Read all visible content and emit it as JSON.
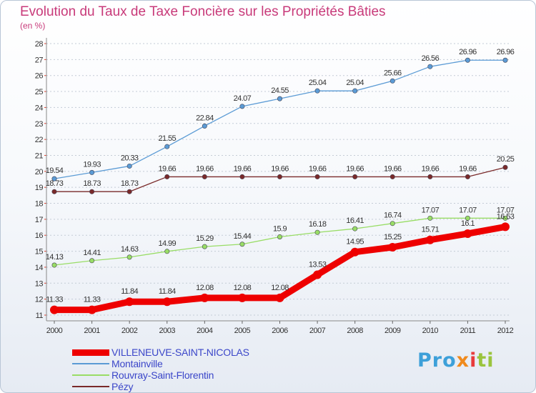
{
  "title": "Evolution du Taux de Taxe Foncière sur les Propriétés Bâties",
  "subtitle": "(en %)",
  "brand": {
    "text": "Proxiti",
    "letters": [
      "Pro",
      "x",
      "i",
      "ti"
    ],
    "colors": [
      "#3da0d9",
      "#f08a1c",
      "#e83b3b",
      "#9ac43d"
    ]
  },
  "chart_data": {
    "type": "line",
    "title": "Evolution du Taux de Taxe Foncière sur les Propriétés Bâties",
    "subtitle": "(en %)",
    "xlabel": "",
    "ylabel": "(en %)",
    "ylim": [
      11,
      28
    ],
    "yticks": [
      11,
      12,
      13,
      14,
      15,
      16,
      17,
      18,
      19,
      20,
      21,
      22,
      23,
      24,
      25,
      26,
      27,
      28
    ],
    "grid": "horizontal dotted",
    "legend_position": "bottom-left",
    "categories": [
      "2000",
      "2001",
      "2002",
      "2003",
      "2004",
      "2005",
      "2006",
      "2007",
      "2008",
      "2009",
      "2010",
      "2011",
      "2012"
    ],
    "series": [
      {
        "name": "VILLENEUVE-SAINT-NICOLAS",
        "color": "#ee0000",
        "thick": true,
        "values": [
          11.33,
          11.33,
          11.84,
          11.84,
          12.08,
          12.08,
          12.08,
          13.53,
          14.95,
          15.25,
          15.71,
          16.1,
          16.53
        ],
        "labels": [
          "11.33",
          "11.33",
          "11.84",
          "11.84",
          "12.08",
          "12.08",
          "12.08",
          "13.53",
          "14.95",
          "15.25",
          "15.71",
          "16.1",
          "16.53"
        ]
      },
      {
        "name": "Montainville",
        "color": "#5b9bd5",
        "thick": false,
        "values": [
          19.54,
          19.93,
          20.33,
          21.55,
          22.84,
          24.07,
          24.55,
          25.04,
          25.04,
          25.66,
          26.56,
          26.96,
          26.96
        ],
        "labels": [
          "19.54",
          "19.93",
          "20.33",
          "21.55",
          "22.84",
          "24.07",
          "24.55",
          "25.04",
          "25.04",
          "25.66",
          "26.56",
          "26.96",
          "26.96"
        ]
      },
      {
        "name": "Rouvray-Saint-Florentin",
        "color": "#99dd66",
        "thick": false,
        "values": [
          14.13,
          14.41,
          14.63,
          14.99,
          15.29,
          15.44,
          15.9,
          16.18,
          16.41,
          16.74,
          17.07,
          17.07,
          17.07
        ],
        "labels": [
          "14.13",
          "14.41",
          "14.63",
          "14.99",
          "15.29",
          "15.44",
          "15.9",
          "16.18",
          "16.41",
          "16.74",
          "17.07",
          "17.07",
          "17.07"
        ]
      },
      {
        "name": "Pézy",
        "color": "#7a2a2a",
        "thick": false,
        "values": [
          18.73,
          18.73,
          18.73,
          19.66,
          19.66,
          19.66,
          19.66,
          19.66,
          19.66,
          19.66,
          19.66,
          19.66,
          20.25
        ],
        "labels": [
          "18.73",
          "18.73",
          "18.73",
          "19.66",
          "19.66",
          "19.66",
          "19.66",
          "19.66",
          "19.66",
          "19.66",
          "19.66",
          "19.66",
          "20.25"
        ]
      }
    ]
  }
}
